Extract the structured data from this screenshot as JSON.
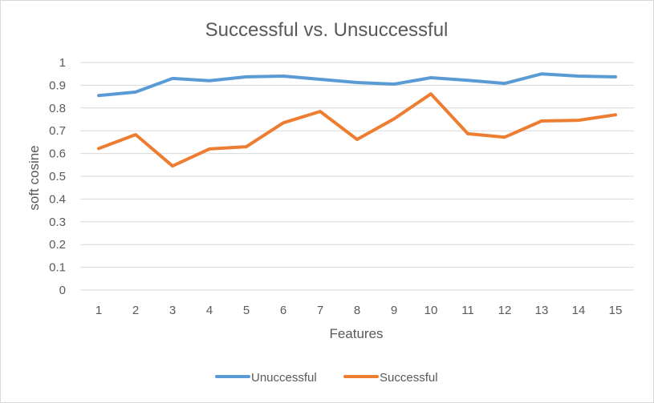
{
  "chart_data": {
    "type": "line",
    "title": "Successful vs. Unsuccessful",
    "xlabel": "Features",
    "ylabel": "soft cosine",
    "x": [
      1,
      2,
      3,
      4,
      5,
      6,
      7,
      8,
      9,
      10,
      11,
      12,
      13,
      14,
      15
    ],
    "ylim": [
      0,
      1
    ],
    "yticks": [
      "0",
      "0.1",
      "0.2",
      "0.3",
      "0.4",
      "0.5",
      "0.6",
      "0.7",
      "0.8",
      "0.9",
      "1"
    ],
    "grid": true,
    "legend_position": "bottom",
    "series": [
      {
        "name": "Unuccessful",
        "color": "#5b9bd5",
        "values": [
          0.855,
          0.87,
          0.93,
          0.92,
          0.937,
          0.94,
          0.926,
          0.912,
          0.905,
          0.933,
          0.922,
          0.908,
          0.95,
          0.94,
          0.937
        ]
      },
      {
        "name": "Successful",
        "color": "#ed7d31",
        "values": [
          0.622,
          0.683,
          0.545,
          0.62,
          0.63,
          0.735,
          0.785,
          0.662,
          0.752,
          0.862,
          0.687,
          0.672,
          0.743,
          0.746,
          0.77
        ]
      }
    ]
  }
}
